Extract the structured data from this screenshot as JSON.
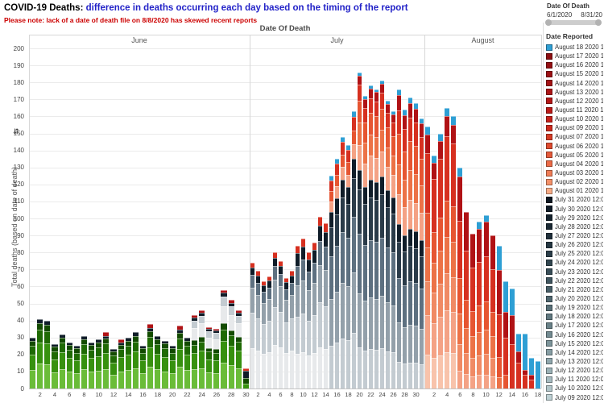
{
  "header": {
    "title_prefix": "COVID-19 Deaths: ",
    "title_main": "difference in deaths occurring each day based on the timing of the report",
    "subtitle": "Please note: lack of a date of death file on 8/8/2020 has skewed recent reports"
  },
  "filter": {
    "label": "Date Of Death",
    "start": "6/1/2020",
    "end": "8/31/20"
  },
  "axis": {
    "x_title": "Date Of Death",
    "y_title": "Total deaths (based on date of death)",
    "y_ticks": [
      0,
      10,
      20,
      30,
      40,
      50,
      60,
      70,
      80,
      90,
      100,
      110,
      120,
      130,
      140,
      150,
      160,
      170,
      180,
      190,
      200
    ]
  },
  "legend": {
    "title": "Date Reported",
    "items": [
      {
        "label": "August 18 2020 1",
        "color": "#2e9fd4"
      },
      {
        "label": "August 17 2020 1",
        "color": "#8d0e12"
      },
      {
        "label": "August 16 2020 1",
        "color": "#940f12"
      },
      {
        "label": "August 15 2020 1",
        "color": "#9c1013"
      },
      {
        "label": "August 14 2020 1",
        "color": "#a41214"
      },
      {
        "label": "August 13 2020 1",
        "color": "#ac1415"
      },
      {
        "label": "August 12 2020 1",
        "color": "#b41616"
      },
      {
        "label": "August 11 2020 1",
        "color": "#bc1917"
      },
      {
        "label": "August 10 2020 1",
        "color": "#c51f19"
      },
      {
        "label": "August 09 2020 1",
        "color": "#cd291c"
      },
      {
        "label": "August 07 2020 1",
        "color": "#d63a24"
      },
      {
        "label": "August 06 2020 1",
        "color": "#de4a2e"
      },
      {
        "label": "August 05 2020 1",
        "color": "#e55a3a"
      },
      {
        "label": "August 04 2020 1",
        "color": "#ec6a46"
      },
      {
        "label": "August 03 2020 1",
        "color": "#f07c55"
      },
      {
        "label": "August 02 2020 1",
        "color": "#f49068"
      },
      {
        "label": "August 01 2020 1",
        "color": "#f8ab85"
      },
      {
        "label": "July 31 2020 12:0",
        "color": "#0d1822"
      },
      {
        "label": "July 30 2020 12:0",
        "color": "#111d28"
      },
      {
        "label": "July 29 2020 12:0",
        "color": "#15232e"
      },
      {
        "label": "July 28 2020 12:0",
        "color": "#1a2934"
      },
      {
        "label": "July 27 2020 12:0",
        "color": "#1f2f3b"
      },
      {
        "label": "July 26 2020 12:0",
        "color": "#243641"
      },
      {
        "label": "July 25 2020 12:0",
        "color": "#2a3d48"
      },
      {
        "label": "July 24 2020 12:0",
        "color": "#31454f"
      },
      {
        "label": "July 23 2020 12:0",
        "color": "#384d57"
      },
      {
        "label": "July 22 2020 12:0",
        "color": "#3f555f"
      },
      {
        "label": "July 21 2020 12:0",
        "color": "#475e67"
      },
      {
        "label": "July 20 2020 12:0",
        "color": "#4f666f"
      },
      {
        "label": "July 19 2020 12:0",
        "color": "#576f77"
      },
      {
        "label": "July 18 2020 12:0",
        "color": "#607880"
      },
      {
        "label": "July 17 2020 12:0",
        "color": "#698188"
      },
      {
        "label": "July 16 2020 12:0",
        "color": "#728a91"
      },
      {
        "label": "July 15 2020 12:0",
        "color": "#7c949a"
      },
      {
        "label": "July 14 2020 12:0",
        "color": "#869da3"
      },
      {
        "label": "July 13 2020 12:0",
        "color": "#90a7ad"
      },
      {
        "label": "July 12 2020 12:0",
        "color": "#9bb1b6"
      },
      {
        "label": "July 11 2020 12:0",
        "color": "#a6bbc0"
      },
      {
        "label": "July 10 2020 12:0",
        "color": "#b1c5c9"
      },
      {
        "label": "July 09 2020 12:0",
        "color": "#bccfd3"
      }
    ]
  },
  "chart_data": {
    "type": "bar",
    "stacked": true,
    "title": "COVID-19 Deaths: difference in deaths occurring each day based on the timing of the report",
    "xlabel": "Date Of Death",
    "ylabel": "Total deaths (based on date of death)",
    "ylim": [
      0,
      200
    ],
    "grid": true,
    "legend_position": "right",
    "stack_meaning": "segments bottom-to-top = chronological Date Reported (green=June reports, gray-to-navy=July reports, salmon-to-dark-red=August reports, blue=August 18)",
    "months": [
      {
        "name": "June",
        "days": 30,
        "tick_days": [
          2,
          4,
          6,
          8,
          10,
          12,
          14,
          16,
          18,
          20,
          22,
          24,
          26,
          28,
          30
        ]
      },
      {
        "name": "July",
        "days": 31,
        "tick_days": [
          2,
          4,
          6,
          8,
          10,
          12,
          14,
          16,
          18,
          20,
          22,
          24,
          26,
          28,
          30
        ]
      },
      {
        "name": "August",
        "days": 18,
        "tick_days": [
          2,
          4,
          6,
          8,
          10,
          12,
          14,
          16,
          18
        ]
      }
    ],
    "colors": {
      "gl2": "#6abc38",
      "g": "#37910f",
      "gd2": "#1f6a04",
      "gd3": "#134b00",
      "gw": "#e7e9eb",
      "gl": "#c3cbd1",
      "gm": "#93a0aa",
      "sl": "#5d7080",
      "nv": "#2a3b49",
      "nv2": "#101d29",
      "sp": "#f8c3ab",
      "s": "#f4a285",
      "so": "#f08a64",
      "o": "#ec7247",
      "ro": "#e65531",
      "r": "#d63020",
      "dr": "#b01215",
      "b": "#2e9fd4"
    },
    "profiles": {
      "junA": [
        [
          "gl2",
          0.36
        ],
        [
          "g",
          0.3
        ],
        [
          "gd2",
          0.18
        ],
        [
          "gd3",
          0.1
        ],
        [
          "nv2",
          0.06
        ]
      ],
      "junB": [
        [
          "gl2",
          0.34
        ],
        [
          "g",
          0.29
        ],
        [
          "gd2",
          0.17
        ],
        [
          "gd3",
          0.09
        ],
        [
          "nv2",
          0.05
        ],
        [
          "dr",
          0.06
        ]
      ],
      "junC": [
        [
          "gl2",
          0.26
        ],
        [
          "g",
          0.22
        ],
        [
          "gd2",
          0.12
        ],
        [
          "gd3",
          0.06
        ],
        [
          "gw",
          0.17
        ],
        [
          "gl",
          0.1
        ],
        [
          "nv2",
          0.04
        ],
        [
          "dr",
          0.03
        ]
      ],
      "jun30": [
        [
          "g",
          0.25
        ],
        [
          "gd3",
          0.25
        ],
        [
          "nv2",
          0.35
        ],
        [
          "r",
          0.15
        ]
      ],
      "julA": [
        [
          "gw",
          0.32
        ],
        [
          "gl",
          0.28
        ],
        [
          "gm",
          0.2
        ],
        [
          "sl",
          0.1
        ],
        [
          "nv2",
          0.06
        ],
        [
          "r",
          0.04
        ]
      ],
      "julB": [
        [
          "gw",
          0.24
        ],
        [
          "gl",
          0.26
        ],
        [
          "gm",
          0.22
        ],
        [
          "sl",
          0.14
        ],
        [
          "nv2",
          0.09
        ],
        [
          "r",
          0.05
        ]
      ],
      "julC": [
        [
          "gl",
          0.2
        ],
        [
          "gm",
          0.22
        ],
        [
          "sl",
          0.2
        ],
        [
          "nv",
          0.14
        ],
        [
          "nv2",
          0.07
        ],
        [
          "s",
          0.05
        ],
        [
          "ro",
          0.05
        ],
        [
          "r",
          0.05
        ],
        [
          "b",
          0.02
        ]
      ],
      "julD": [
        [
          "gl",
          0.13
        ],
        [
          "gm",
          0.17
        ],
        [
          "sl",
          0.19
        ],
        [
          "nv",
          0.14
        ],
        [
          "nv2",
          0.06
        ],
        [
          "s",
          0.08
        ],
        [
          "o",
          0.07
        ],
        [
          "ro",
          0.07
        ],
        [
          "r",
          0.05
        ],
        [
          "dr",
          0.03
        ],
        [
          "b",
          0.01
        ]
      ],
      "julE": [
        [
          "gl",
          0.09
        ],
        [
          "gm",
          0.13
        ],
        [
          "sl",
          0.15
        ],
        [
          "nv",
          0.12
        ],
        [
          "nv2",
          0.06
        ],
        [
          "s",
          0.1
        ],
        [
          "o",
          0.1
        ],
        [
          "ro",
          0.1
        ],
        [
          "r",
          0.08
        ],
        [
          "dr",
          0.05
        ],
        [
          "b",
          0.02
        ]
      ],
      "augA": [
        [
          "sp",
          0.13
        ],
        [
          "s",
          0.15
        ],
        [
          "so",
          0.13
        ],
        [
          "o",
          0.13
        ],
        [
          "ro",
          0.13
        ],
        [
          "r",
          0.23
        ],
        [
          "dr",
          0.07
        ],
        [
          "b",
          0.03
        ]
      ],
      "augB": [
        [
          "s",
          0.08
        ],
        [
          "so",
          0.12
        ],
        [
          "o",
          0.14
        ],
        [
          "ro",
          0.16
        ],
        [
          "r",
          0.26
        ],
        [
          "dr",
          0.2
        ],
        [
          "b",
          0.04
        ]
      ],
      "augC": [
        [
          "s",
          0.08
        ],
        [
          "so",
          0.12
        ],
        [
          "o",
          0.14
        ],
        [
          "ro",
          0.16
        ],
        [
          "r",
          0.28
        ],
        [
          "dr",
          0.22
        ]
      ],
      "augD": [
        [
          "o",
          0.08
        ],
        [
          "ro",
          0.14
        ],
        [
          "r",
          0.3
        ],
        [
          "dr",
          0.31
        ],
        [
          "b",
          0.17
        ]
      ]
    },
    "bars": [
      [
        0,
        1,
        30,
        "junA"
      ],
      [
        0,
        2,
        41,
        "junA"
      ],
      [
        0,
        3,
        40,
        "junA"
      ],
      [
        0,
        4,
        26,
        "junA"
      ],
      [
        0,
        5,
        32,
        "junA"
      ],
      [
        0,
        6,
        27,
        "junA"
      ],
      [
        0,
        7,
        25,
        "junA"
      ],
      [
        0,
        8,
        31,
        "junA"
      ],
      [
        0,
        9,
        27,
        "junA"
      ],
      [
        0,
        10,
        29,
        "junA"
      ],
      [
        0,
        11,
        33,
        "junB"
      ],
      [
        0,
        12,
        23,
        "junA"
      ],
      [
        0,
        13,
        29,
        "junB"
      ],
      [
        0,
        14,
        30,
        "junA"
      ],
      [
        0,
        15,
        33,
        "junA"
      ],
      [
        0,
        16,
        25,
        "junA"
      ],
      [
        0,
        17,
        38,
        "junB"
      ],
      [
        0,
        18,
        31,
        "junA"
      ],
      [
        0,
        19,
        28,
        "junA"
      ],
      [
        0,
        20,
        25,
        "junA"
      ],
      [
        0,
        21,
        37,
        "junB"
      ],
      [
        0,
        22,
        30,
        "junA"
      ],
      [
        0,
        23,
        43,
        "junC"
      ],
      [
        0,
        24,
        46,
        "junC"
      ],
      [
        0,
        25,
        36,
        "junC"
      ],
      [
        0,
        26,
        35,
        "junC"
      ],
      [
        0,
        27,
        58,
        "junC"
      ],
      [
        0,
        28,
        52,
        "junC"
      ],
      [
        0,
        29,
        46,
        "junC"
      ],
      [
        0,
        30,
        12,
        "jun30"
      ],
      [
        1,
        1,
        74,
        "julA"
      ],
      [
        1,
        2,
        69,
        "julA"
      ],
      [
        1,
        3,
        63,
        "julA"
      ],
      [
        1,
        4,
        66,
        "julA"
      ],
      [
        1,
        5,
        80,
        "julA"
      ],
      [
        1,
        6,
        75,
        "julA"
      ],
      [
        1,
        7,
        65,
        "julA"
      ],
      [
        1,
        8,
        69,
        "julA"
      ],
      [
        1,
        9,
        84,
        "julB"
      ],
      [
        1,
        10,
        88,
        "julB"
      ],
      [
        1,
        11,
        80,
        "julB"
      ],
      [
        1,
        12,
        86,
        "julB"
      ],
      [
        1,
        13,
        101,
        "julB"
      ],
      [
        1,
        14,
        97,
        "julB"
      ],
      [
        1,
        15,
        125,
        "julC"
      ],
      [
        1,
        16,
        135,
        "julC"
      ],
      [
        1,
        17,
        148,
        "julC"
      ],
      [
        1,
        18,
        143,
        "julC"
      ],
      [
        1,
        19,
        163,
        "julC"
      ],
      [
        1,
        20,
        186,
        "julD"
      ],
      [
        1,
        21,
        172,
        "julD"
      ],
      [
        1,
        22,
        178,
        "julD"
      ],
      [
        1,
        23,
        176,
        "julD"
      ],
      [
        1,
        24,
        181,
        "julD"
      ],
      [
        1,
        25,
        169,
        "julD"
      ],
      [
        1,
        26,
        163,
        "julD"
      ],
      [
        1,
        27,
        176,
        "julE"
      ],
      [
        1,
        28,
        164,
        "julE"
      ],
      [
        1,
        29,
        171,
        "julE"
      ],
      [
        1,
        30,
        168,
        "julE"
      ],
      [
        1,
        31,
        159,
        "julE"
      ],
      [
        2,
        1,
        154,
        "augA"
      ],
      [
        2,
        2,
        137,
        "augA"
      ],
      [
        2,
        3,
        150,
        "augA"
      ],
      [
        2,
        4,
        165,
        "augA"
      ],
      [
        2,
        5,
        160,
        "augA"
      ],
      [
        2,
        6,
        130,
        "augB"
      ],
      [
        2,
        7,
        104,
        "augC"
      ],
      [
        2,
        8,
        91,
        "augC"
      ],
      [
        2,
        9,
        98,
        "augB"
      ],
      [
        2,
        10,
        102,
        "augB"
      ],
      [
        2,
        11,
        90,
        "augC"
      ],
      [
        2,
        12,
        84,
        "augD"
      ],
      [
        2,
        13,
        63,
        [
          [
            "ro",
            8
          ],
          [
            "r",
            22
          ],
          [
            "dr",
            15
          ],
          [
            "b",
            18
          ]
        ]
      ],
      [
        2,
        14,
        59,
        [
          [
            "r",
            26
          ],
          [
            "dr",
            17
          ],
          [
            "b",
            16
          ]
        ]
      ],
      [
        2,
        15,
        32,
        [
          [
            "r",
            15
          ],
          [
            "dr",
            7
          ],
          [
            "b",
            10
          ]
        ]
      ],
      [
        2,
        16,
        32,
        [
          [
            "r",
            8
          ],
          [
            "dr",
            3
          ],
          [
            "b",
            21
          ]
        ]
      ],
      [
        2,
        17,
        18,
        [
          [
            "r",
            5
          ],
          [
            "dr",
            3
          ],
          [
            "b",
            10
          ]
        ]
      ],
      [
        2,
        18,
        16,
        [
          [
            "b",
            16
          ]
        ]
      ]
    ]
  }
}
